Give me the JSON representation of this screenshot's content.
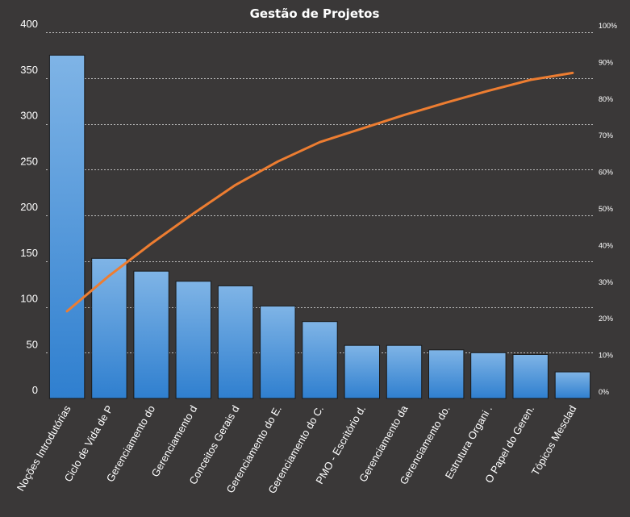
{
  "chart_data": {
    "type": "bar",
    "title": "Gestão de Projetos",
    "categories": [
      "Noções Introdutórias",
      "Ciclo de Vida de P",
      "Gerenciamento do",
      "Gerenciamento d",
      "Conceitos Gerais d",
      "Gerenciamento do E.",
      "Gerenciamento do C.",
      "PMO - Escritório d.",
      "Gerenciamento da",
      "Gerenciamento do.",
      "Estrutura Organi .",
      "O Papel do Geren.",
      "Tópicos Mesclad"
    ],
    "series": [
      {
        "type": "bar",
        "values": [
          375,
          153,
          139,
          128,
          123,
          101,
          84,
          58,
          58,
          53,
          50,
          48,
          29
        ]
      },
      {
        "type": "line",
        "axis": "right",
        "values": [
          23.8,
          33.5,
          42.3,
          50.5,
          58.3,
          64.7,
          70.0,
          73.7,
          77.4,
          80.8,
          84.0,
          87.0,
          88.9
        ]
      }
    ],
    "y_left": {
      "range": [
        0,
        400
      ],
      "ticks": [
        "0",
        "50",
        "100",
        "150",
        "200",
        "250",
        "300",
        "350",
        "400"
      ]
    },
    "y_right": {
      "range": [
        0,
        100
      ],
      "ticks": [
        "0%",
        "10%",
        "20%",
        "30%",
        "40%",
        "50%",
        "60%",
        "70%",
        "80%",
        "90%",
        "100%"
      ]
    },
    "grid": true,
    "legend": "none",
    "colors": {
      "background": "#3a3838",
      "bar_top": "#7fb4e6",
      "bar_bottom": "#2f7fcf",
      "bar_edge": "#1a1a1a",
      "line": "#ed7d31",
      "grid": "#bfbfbf",
      "text": "#ffffff"
    }
  }
}
